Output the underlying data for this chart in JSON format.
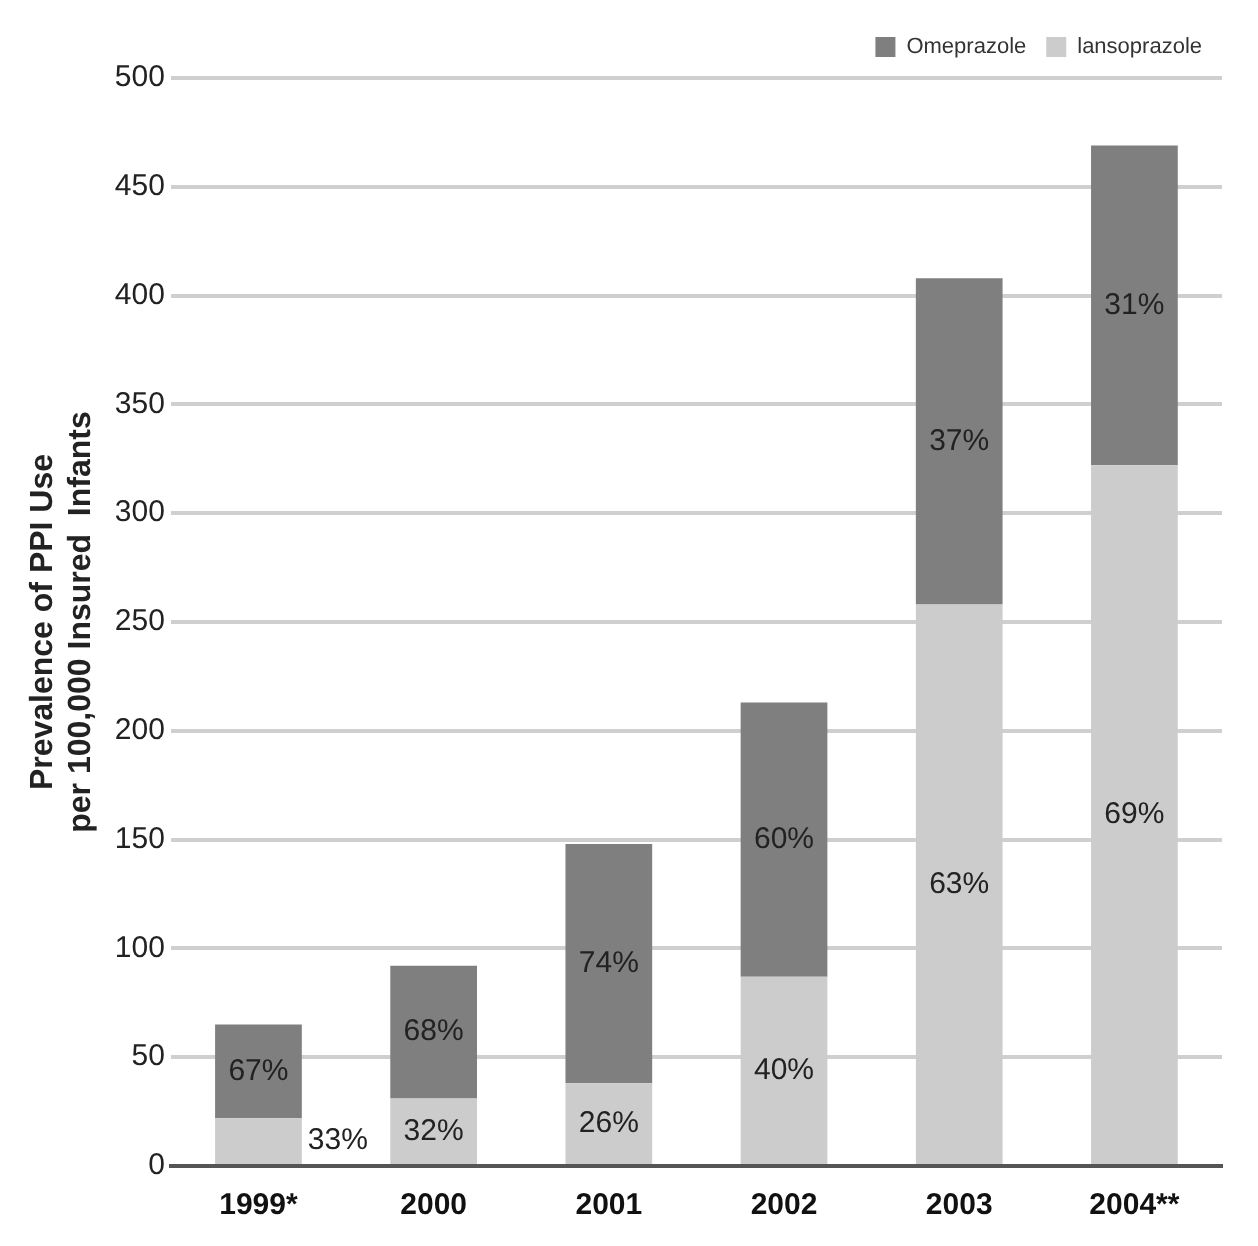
{
  "chart_data": {
    "type": "bar",
    "stacked": true,
    "ylabel": "Prevalence of PPI Use\nper 100,000 Insured  Infants",
    "categories": [
      "1999*",
      "2000",
      "2001",
      "2002",
      "2003",
      "2004**"
    ],
    "series": [
      {
        "name": "lansoprazole",
        "color": "#cccccc",
        "values": [
          22,
          31,
          38,
          87,
          258,
          322
        ]
      },
      {
        "name": "Omeprazole",
        "color": "#7f7f7f",
        "values": [
          43,
          61,
          110,
          126,
          150,
          147
        ]
      }
    ],
    "annotations": [
      "33%",
      "67%",
      "32%",
      "68%",
      "26%",
      "74%",
      "40%",
      "60%",
      "63%",
      "37%",
      "69%",
      "31%"
    ],
    "ylim": [
      0,
      500
    ],
    "yticks": [
      0,
      50,
      100,
      150,
      200,
      250,
      300,
      350,
      400,
      450,
      500
    ],
    "grid": "y",
    "legend": "top right"
  }
}
